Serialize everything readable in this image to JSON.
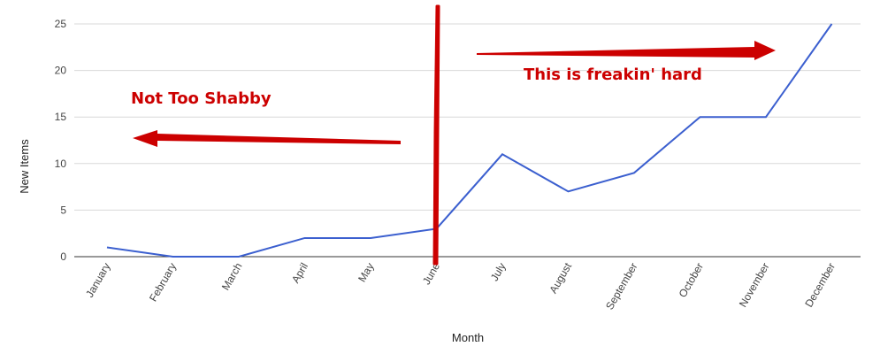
{
  "chart_data": {
    "type": "line",
    "title": "",
    "xlabel": "Month",
    "ylabel": "New Items",
    "categories": [
      "January",
      "February",
      "March",
      "April",
      "May",
      "June",
      "July",
      "August",
      "September",
      "October",
      "November",
      "December"
    ],
    "series": [
      {
        "values": [
          1,
          0,
          0,
          2,
          2,
          3,
          11,
          7,
          9,
          15,
          15,
          25
        ]
      }
    ],
    "ylim": [
      0,
      25
    ],
    "yticks": [
      0,
      5,
      10,
      15,
      20,
      25
    ],
    "grid": true,
    "colors": {
      "line": "#3b5fcf",
      "grid": "#d9d9d9",
      "annotation": "#cc0000"
    },
    "annotations": [
      {
        "text": "Not Too Shabby",
        "arrow": "pointing-left"
      },
      {
        "text": "This is freakin' hard",
        "arrow": "pointing-right"
      }
    ],
    "divider_at": "June"
  }
}
